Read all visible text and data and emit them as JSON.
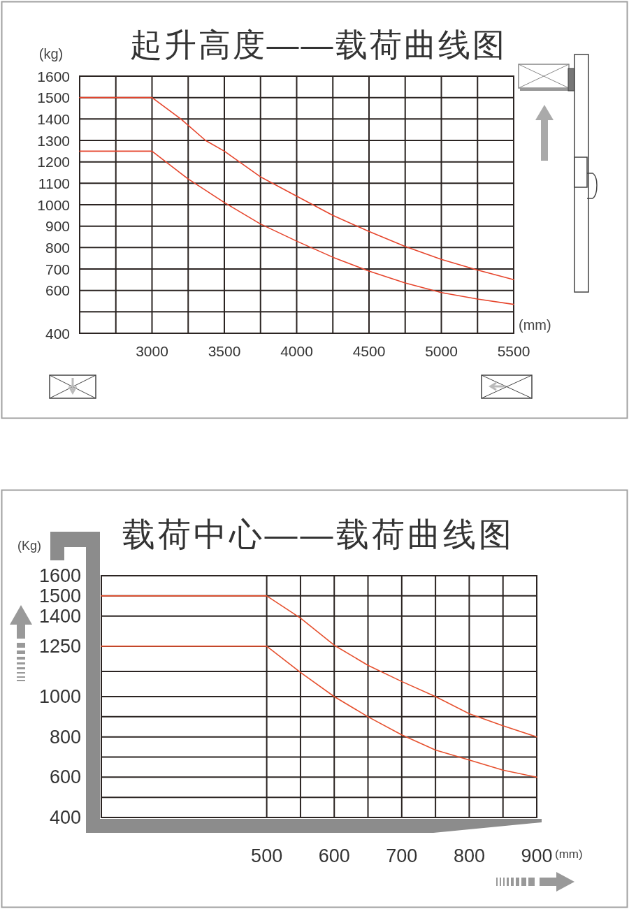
{
  "chart_data": [
    {
      "type": "line",
      "title": "起升高度——载荷曲线图",
      "ylabel": "(kg)",
      "xlabel": "(mm)",
      "xlim": [
        2500,
        5500
      ],
      "xticks": [
        {
          "value": 2750,
          "label": null
        },
        3000,
        {
          "value": 3250,
          "label": null
        },
        3500,
        {
          "value": 3750,
          "label": null
        },
        4000,
        {
          "value": 4250,
          "label": null
        },
        4500,
        {
          "value": 4750,
          "label": null
        },
        5000,
        {
          "value": 5250,
          "label": null
        },
        5500
      ],
      "ylim": [
        400,
        1600
      ],
      "yticks": [
        400,
        {
          "value": 500,
          "label": null
        },
        600,
        700,
        800,
        900,
        1000,
        1100,
        1200,
        1300,
        1400,
        1500,
        1600
      ],
      "grid": true,
      "series": [
        {
          "color": "#e6452c",
          "x": [
            2500,
            3000,
            3200,
            3370,
            3500,
            3750,
            4000,
            4250,
            4500,
            4750,
            5000,
            5250,
            5500
          ],
          "values": [
            1500,
            1500,
            1400,
            1300,
            1250,
            1130,
            1040,
            950,
            875,
            805,
            745,
            695,
            650
          ]
        },
        {
          "color": "#e6452c",
          "x": [
            2500,
            3000,
            3250,
            3500,
            3750,
            4000,
            4250,
            4500,
            4750,
            5000,
            5250,
            5500
          ],
          "values": [
            1250,
            1250,
            1120,
            1010,
            910,
            830,
            755,
            690,
            635,
            590,
            560,
            535
          ]
        }
      ]
    },
    {
      "type": "line",
      "title": "载荷中心——载荷曲线图",
      "ylabel": "(Kg)",
      "xlabel": "(mm)",
      "xlim": [
        255,
        900
      ],
      "xticks": [
        500,
        {
          "value": 550,
          "label": null
        },
        600,
        {
          "value": 650,
          "label": null
        },
        700,
        {
          "value": 750,
          "label": null
        },
        800,
        {
          "value": 850,
          "label": null
        },
        900
      ],
      "ylim": [
        400,
        1600
      ],
      "yticks": [
        400,
        {
          "value": 500,
          "label": null
        },
        600,
        {
          "value": 700,
          "label": null
        },
        800,
        {
          "value": 900,
          "label": null
        },
        1000,
        {
          "value": 1125,
          "label": null
        },
        1250,
        1400,
        1500,
        1600
      ],
      "grid": true,
      "series": [
        {
          "color": "#e6502e",
          "x": [
            255,
            500,
            550,
            600,
            650,
            700,
            750,
            800,
            850,
            900
          ],
          "values": [
            1500,
            1500,
            1390,
            1255,
            1155,
            1075,
            1000,
            915,
            855,
            800
          ]
        },
        {
          "color": "#e6502e",
          "x": [
            255,
            500,
            550,
            600,
            650,
            700,
            750,
            800,
            850,
            900
          ],
          "values": [
            1250,
            1250,
            1120,
            1000,
            900,
            810,
            735,
            685,
            635,
            600
          ]
        }
      ]
    }
  ]
}
